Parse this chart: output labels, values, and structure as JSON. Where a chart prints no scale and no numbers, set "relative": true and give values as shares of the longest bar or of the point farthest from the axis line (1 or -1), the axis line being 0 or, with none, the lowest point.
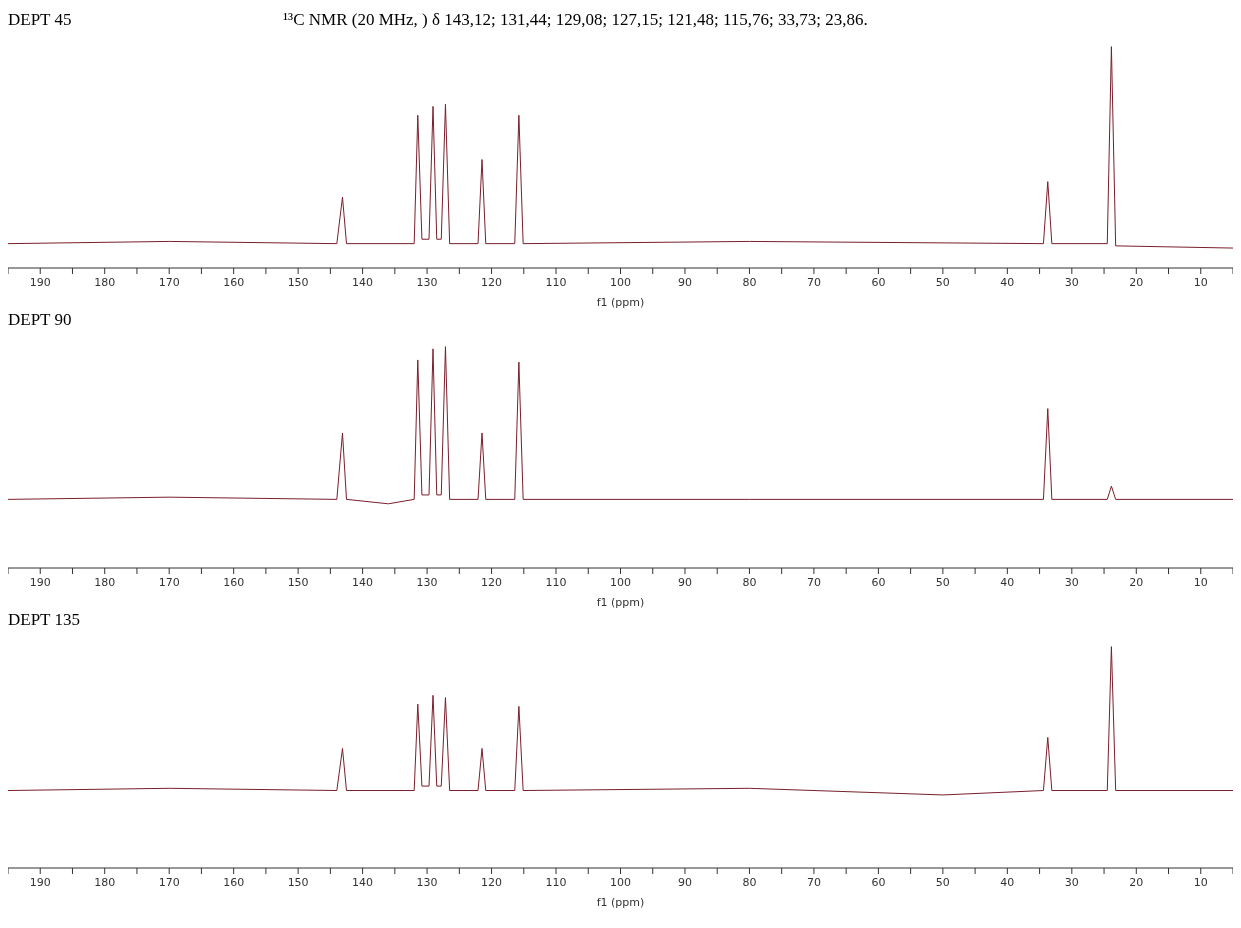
{
  "chart_data": [
    {
      "type": "line",
      "title": "DEPT 45",
      "subtitle": "¹³C NMR (20 MHz, ) δ 143,12; 131,44; 129,08; 127,15; 121,48; 115,76; 33,73; 23,86.",
      "xlabel": "f1 (ppm)",
      "relative": true,
      "xlim": [
        195,
        5
      ],
      "xticks": [
        {
          "value": 195,
          "label": null
        },
        190,
        {
          "value": 185,
          "label": null
        },
        180,
        {
          "value": 175,
          "label": null
        },
        170,
        {
          "value": 165,
          "label": null
        },
        160,
        {
          "value": 155,
          "label": null
        },
        150,
        {
          "value": 145,
          "label": null
        },
        140,
        {
          "value": 135,
          "label": null
        },
        130,
        {
          "value": 125,
          "label": null
        },
        120,
        {
          "value": 115,
          "label": null
        },
        110,
        {
          "value": 105,
          "label": null
        },
        100,
        {
          "value": 95,
          "label": null
        },
        90,
        {
          "value": 85,
          "label": null
        },
        80,
        {
          "value": 75,
          "label": null
        },
        70,
        {
          "value": 65,
          "label": null
        },
        60,
        {
          "value": 55,
          "label": null
        },
        50,
        {
          "value": 45,
          "label": null
        },
        40,
        {
          "value": 35,
          "label": null
        },
        30,
        {
          "value": 25,
          "label": null
        },
        20,
        {
          "value": 15,
          "label": null
        },
        10,
        {
          "value": 5,
          "label": null
        }
      ],
      "grid": false,
      "marker": "none",
      "line_style": "solid",
      "series": [
        {
          "color": "#7a1f2b",
          "x": [
            195,
            170,
            144,
            143.12,
            142.5,
            132,
            131.44,
            130.8,
            129.7,
            129.08,
            128.5,
            127.8,
            127.15,
            126.5,
            122.1,
            121.48,
            120.9,
            116.4,
            115.76,
            115.1,
            80,
            34.4,
            33.73,
            33.1,
            24.5,
            23.86,
            23.2,
            5
          ],
          "values": [
            0.11,
            0.12,
            0.11,
            0.32,
            0.11,
            0.11,
            0.69,
            0.13,
            0.13,
            0.73,
            0.13,
            0.13,
            0.74,
            0.11,
            0.11,
            0.49,
            0.11,
            0.11,
            0.69,
            0.11,
            0.12,
            0.11,
            0.39,
            0.11,
            0.11,
            1,
            0.1,
            0.09
          ]
        }
      ]
    },
    {
      "type": "line",
      "title": "DEPT 90",
      "xlabel": "f1 (ppm)",
      "relative": true,
      "xlim": [
        195,
        5
      ],
      "xticks": [
        {
          "value": 195,
          "label": null
        },
        190,
        {
          "value": 185,
          "label": null
        },
        180,
        {
          "value": 175,
          "label": null
        },
        170,
        {
          "value": 165,
          "label": null
        },
        160,
        {
          "value": 155,
          "label": null
        },
        150,
        {
          "value": 145,
          "label": null
        },
        140,
        {
          "value": 135,
          "label": null
        },
        130,
        {
          "value": 125,
          "label": null
        },
        120,
        {
          "value": 115,
          "label": null
        },
        110,
        {
          "value": 105,
          "label": null
        },
        100,
        {
          "value": 95,
          "label": null
        },
        90,
        {
          "value": 85,
          "label": null
        },
        80,
        {
          "value": 75,
          "label": null
        },
        70,
        {
          "value": 65,
          "label": null
        },
        60,
        {
          "value": 55,
          "label": null
        },
        50,
        {
          "value": 45,
          "label": null
        },
        40,
        {
          "value": 35,
          "label": null
        },
        30,
        {
          "value": 25,
          "label": null
        },
        20,
        {
          "value": 15,
          "label": null
        },
        10,
        {
          "value": 5,
          "label": null
        }
      ],
      "grid": false,
      "marker": "none",
      "line_style": "solid",
      "series": [
        {
          "color": "#7a1f2b",
          "x": [
            195,
            170,
            144,
            143.12,
            142.5,
            136,
            132,
            131.44,
            130.8,
            129.7,
            129.08,
            128.5,
            127.8,
            127.15,
            126.5,
            122.1,
            121.48,
            120.9,
            116.4,
            115.76,
            115.1,
            80,
            34.4,
            33.73,
            33.1,
            24.5,
            23.86,
            23.2,
            5
          ],
          "values": [
            0.31,
            0.32,
            0.31,
            0.61,
            0.31,
            0.29,
            0.31,
            0.94,
            0.33,
            0.33,
            0.99,
            0.33,
            0.33,
            1,
            0.31,
            0.31,
            0.61,
            0.31,
            0.31,
            0.93,
            0.31,
            0.31,
            0.31,
            0.72,
            0.31,
            0.31,
            0.37,
            0.31,
            0.31
          ]
        }
      ]
    },
    {
      "type": "line",
      "title": "DEPT 135",
      "xlabel": "f1 (ppm)",
      "relative": true,
      "xlim": [
        195,
        5
      ],
      "xticks": [
        {
          "value": 195,
          "label": null
        },
        190,
        {
          "value": 185,
          "label": null
        },
        180,
        {
          "value": 175,
          "label": null
        },
        170,
        {
          "value": 165,
          "label": null
        },
        160,
        {
          "value": 155,
          "label": null
        },
        150,
        {
          "value": 145,
          "label": null
        },
        140,
        {
          "value": 135,
          "label": null
        },
        130,
        {
          "value": 125,
          "label": null
        },
        120,
        {
          "value": 115,
          "label": null
        },
        110,
        {
          "value": 105,
          "label": null
        },
        100,
        {
          "value": 95,
          "label": null
        },
        90,
        {
          "value": 85,
          "label": null
        },
        80,
        {
          "value": 75,
          "label": null
        },
        70,
        {
          "value": 65,
          "label": null
        },
        60,
        {
          "value": 55,
          "label": null
        },
        50,
        {
          "value": 45,
          "label": null
        },
        40,
        {
          "value": 35,
          "label": null
        },
        30,
        {
          "value": 25,
          "label": null
        },
        20,
        {
          "value": 15,
          "label": null
        },
        10,
        {
          "value": 5,
          "label": null
        }
      ],
      "grid": false,
      "marker": "none",
      "line_style": "solid",
      "series": [
        {
          "color": "#7a1f2b",
          "x": [
            195,
            170,
            144,
            143.12,
            142.5,
            132,
            131.44,
            130.8,
            129.7,
            129.08,
            128.5,
            127.8,
            127.15,
            126.5,
            122.1,
            121.48,
            120.9,
            116.4,
            115.76,
            115.1,
            80,
            50,
            34.4,
            33.73,
            33.1,
            24.5,
            23.86,
            23.2,
            5
          ],
          "values": [
            0.35,
            0.36,
            0.35,
            0.54,
            0.35,
            0.35,
            0.74,
            0.37,
            0.37,
            0.78,
            0.37,
            0.37,
            0.77,
            0.35,
            0.35,
            0.54,
            0.35,
            0.35,
            0.73,
            0.35,
            0.36,
            0.33,
            0.35,
            0.59,
            0.35,
            0.35,
            1,
            0.35,
            0.35
          ]
        }
      ]
    }
  ]
}
